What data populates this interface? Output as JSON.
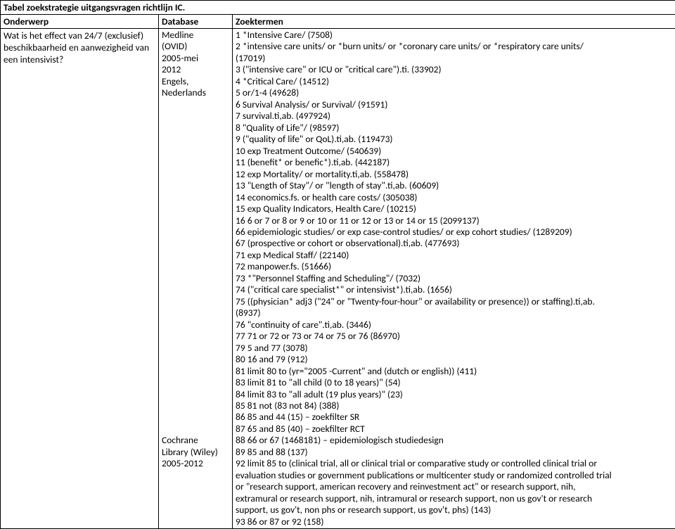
{
  "title": "Tabel zoekstrategie uitgangsvragen richtlijn IC.",
  "headers": {
    "onderwerp": "Onderwerp",
    "database": "Database",
    "zoektermen": "Zoektermen"
  },
  "onderwerp": "Wat is het effect van 24/7 (exclusief) beschikbaarheid en aanwezigheid van een intensivist?",
  "database_lines": [
    "Medline",
    "(OVID)",
    "2005-mei",
    "2012",
    "Engels,",
    "Nederlands",
    "",
    "",
    "",
    "",
    "",
    "",
    "",
    "",
    "",
    "",
    "",
    "",
    "",
    "",
    "",
    "",
    "",
    "",
    "",
    "",
    "",
    "",
    "",
    "",
    "",
    "",
    "",
    "",
    "",
    "Cochrane",
    "Library (Wiley)",
    "2005-2012"
  ],
  "zoek_lines": [
    "1     *Intensive Care/ (7508)",
    "2     *intensive care units/ or *burn units/ or *coronary care units/ or *respiratory care units/",
    "(17019)",
    "3     (\"intensive care\" or ICU or \"critical care\").ti. (33902)",
    "4     *Critical Care/ (14512)",
    "5     or/1-4 (49628)",
    "6     Survival Analysis/ or Survival/ (91591)",
    "7     survival.ti,ab. (497924)",
    "8     \"Quality of Life\"/ (98597)",
    "9     (\"quality of life\" or QoL).ti,ab. (119473)",
    "10     exp Treatment Outcome/ (540639)",
    "11     (benefit* or benefic*).ti,ab. (442187)",
    "12     exp Mortality/ or mortality.ti,ab. (558478)",
    "13     \"Length of Stay\"/ or \"length of stay\".ti,ab. (60609)",
    "14     economics.fs. or health care costs/ (305038)",
    "15     exp Quality Indicators, Health Care/ (10215)",
    "16     6 or 7 or 8 or 9 or 10 or 11 or 12 or 13 or 14 or 15 (2099137)",
    "66     epidemiologic studies/ or exp case-control studies/ or exp cohort studies/ (1289209)",
    "67     (prospective or cohort or observational).ti,ab. (477693)",
    "71     exp Medical Staff/ (22140)",
    "72     manpower.fs. (51666)",
    "73     *\"Personnel Staffing and Scheduling\"/ (7032)",
    "74     (\"critical care specialist*\" or intensivist*).ti,ab. (1656)",
    "75     ((physician* adj3 (\"24\" or \"Twenty-four-hour\" or availability or presence)) or staffing).ti,ab.",
    "(8937)",
    "76     \"continuity of care\".ti,ab. (3446)",
    "77     71 or 72 or 73 or 74 or 75 or 76 (86970)",
    "79     5 and 77 (3078)",
    "80     16 and 79 (912)",
    "81     limit 80 to (yr=\"2005 -Current\" and (dutch or english)) (411)",
    "83     limit 81 to \"all child (0 to 18 years)\" (54)",
    "84     limit 83 to \"all adult (19 plus years)\" (23)",
    "85     81 not (83 not 84) (388)",
    "86     85 and 44 (15) – zoekfilter SR",
    "87     65 and 85 (40) – zoekfilter RCT",
    "88     66 or 67 (1468181) – epidemiologisch studiedesign",
    "89     85 and 88 (137)",
    "92     limit 85 to (clinical trial, all or clinical trial or comparative study or controlled clinical trial or",
    "evaluation studies or government publications or multicenter study or randomized controlled trial",
    "or \"research support, american recovery and reinvestment act\" or research support, nih,",
    "extramural or research support, nih, intramural or research support, non us gov't or research",
    "support, us gov't, non phs or research support, us gov't, phs) (143)",
    "93     86 or 87 or 92 (158)"
  ]
}
